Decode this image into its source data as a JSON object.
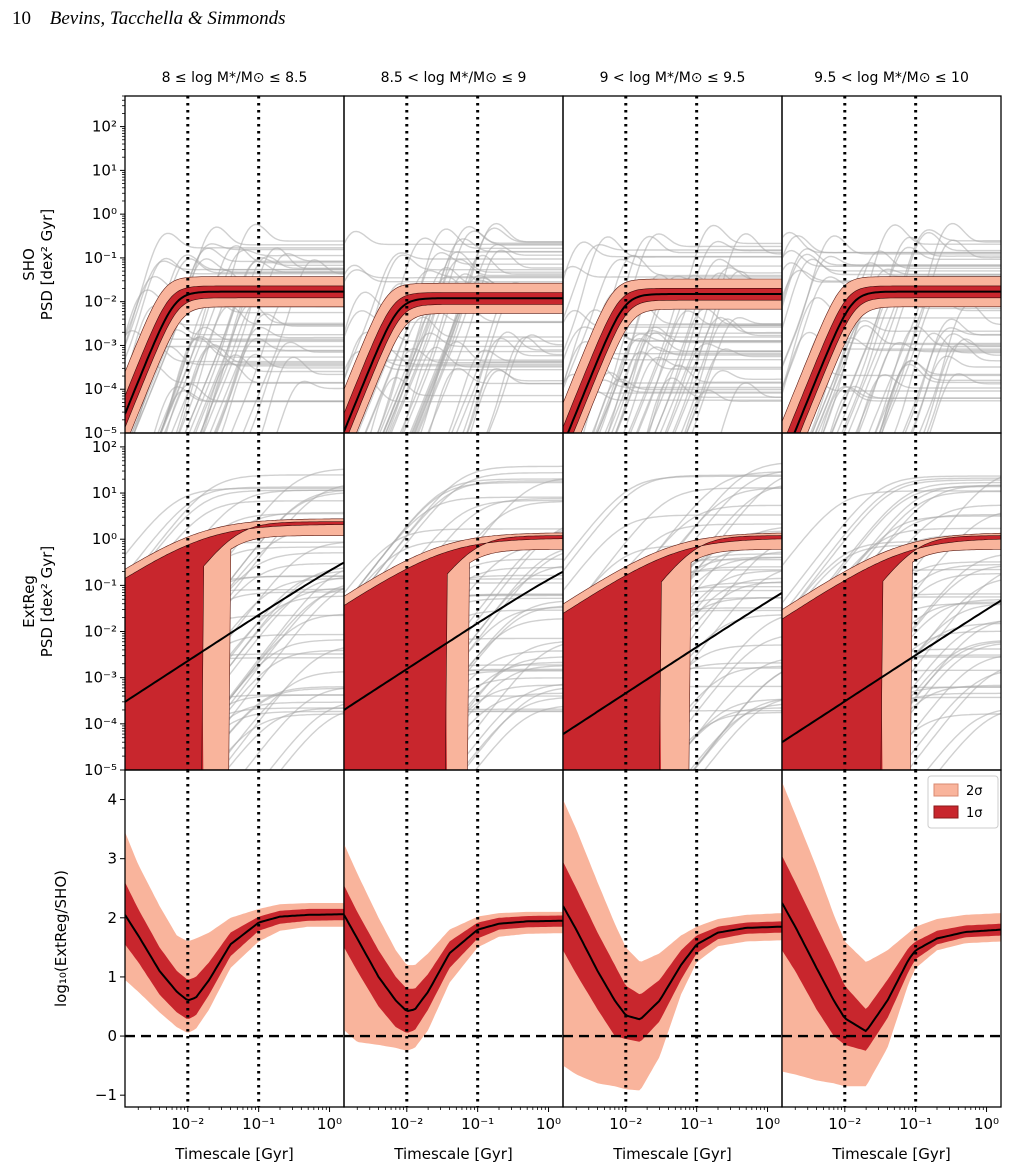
{
  "header": {
    "page_number": "10",
    "authors": "Bevins, Tacchella & Simmonds"
  },
  "chart_data": {
    "type": "line",
    "column_titles": [
      "8 ≤ log M*/M⊙ ≤ 8.5",
      "8.5 < log M*/M⊙ ≤ 9",
      "9 < log M*/M⊙ ≤ 9.5",
      "9.5 < log M*/M⊙ ≤ 10"
    ],
    "xlabel": "Timescale [Gyr]",
    "xscale": "log",
    "xlim": [
      0.0013,
      1.6
    ],
    "x_tick_labels": [
      "10⁻²",
      "10⁻¹",
      "10⁰"
    ],
    "vertical_lines": [
      0.01,
      0.1
    ],
    "rows": [
      {
        "ylabel": [
          "SHO",
          "PSD [dex² Gyr]"
        ],
        "yscale": "log",
        "ylim": [
          1e-05,
          500
        ],
        "y_tick_labels": [
          "10⁻⁵",
          "10⁻⁴",
          "10⁻³",
          "10⁻²",
          "10⁻¹",
          "10⁰",
          "10¹",
          "10²"
        ]
      },
      {
        "ylabel": [
          "ExtReg",
          "PSD [dex² Gyr]"
        ],
        "yscale": "log",
        "ylim": [
          1e-05,
          200
        ],
        "y_tick_labels": [
          "10⁻⁵",
          "10⁻⁴",
          "10⁻³",
          "10⁻²",
          "10⁻¹",
          "10⁰",
          "10¹",
          "10²"
        ]
      },
      {
        "ylabel": "log₁₀(ExtReg/SHO)",
        "yscale": "linear",
        "ylim": [
          -1.2,
          4.5
        ],
        "y_tick_labels": [
          "−1",
          "0",
          "1",
          "2",
          "3",
          "4"
        ],
        "horizontal_line": 0
      }
    ],
    "legend": {
      "placement": "top-right",
      "entries": [
        {
          "label": "2σ",
          "color": "#f9b49c"
        },
        {
          "label": "1σ",
          "color": "#c8262d"
        }
      ]
    },
    "colors": {
      "sample_lines": "#a9a9a9",
      "median": "#000000",
      "two_sigma": "#f9b49c",
      "one_sigma": "#c8262d"
    },
    "panels": {
      "sho": [
        {
          "plateau": 0.017,
          "onset_x": 0.0065
        },
        {
          "plateau": 0.012,
          "onset_x": 0.0075
        },
        {
          "plateau": 0.015,
          "onset_x": 0.0095
        },
        {
          "plateau": 0.017,
          "onset_x": 0.0125
        }
      ],
      "extreg": [
        {
          "plateau": 2.0,
          "low_end": 0.0003
        },
        {
          "plateau": 1.0,
          "low_end": 0.0002
        },
        {
          "plateau": 1.0,
          "low_end": 6e-05
        },
        {
          "plateau": 1.0,
          "low_end": 4e-05
        }
      ],
      "ratio": [
        {
          "x": [
            0.0013,
            0.002,
            0.004,
            0.007,
            0.01,
            0.013,
            0.02,
            0.04,
            0.1,
            0.2,
            0.5,
            1.6
          ],
          "median": [
            2.05,
            1.7,
            1.1,
            0.75,
            0.6,
            0.65,
            0.95,
            1.55,
            1.92,
            2.02,
            2.05,
            2.06
          ],
          "lo1": [
            1.55,
            1.25,
            0.7,
            0.4,
            0.28,
            0.35,
            0.7,
            1.35,
            1.78,
            1.9,
            1.95,
            1.96
          ],
          "hi1": [
            2.6,
            2.15,
            1.5,
            1.1,
            0.95,
            1.0,
            1.25,
            1.75,
            2.02,
            2.12,
            2.15,
            2.15
          ],
          "lo2": [
            0.95,
            0.75,
            0.4,
            0.15,
            0.05,
            0.12,
            0.45,
            1.15,
            1.6,
            1.78,
            1.85,
            1.85
          ],
          "hi2": [
            3.45,
            2.9,
            2.2,
            1.7,
            1.6,
            1.65,
            1.75,
            2.0,
            2.15,
            2.23,
            2.25,
            2.25
          ]
        },
        {
          "x": [
            0.0013,
            0.002,
            0.004,
            0.007,
            0.01,
            0.013,
            0.02,
            0.04,
            0.1,
            0.2,
            0.5,
            1.6
          ],
          "median": [
            2.05,
            1.65,
            1.0,
            0.6,
            0.42,
            0.45,
            0.75,
            1.4,
            1.8,
            1.9,
            1.94,
            1.95
          ],
          "lo1": [
            1.5,
            1.1,
            0.5,
            0.15,
            0.05,
            0.1,
            0.45,
            1.15,
            1.65,
            1.8,
            1.84,
            1.85
          ],
          "hi1": [
            2.55,
            2.1,
            1.45,
            1.0,
            0.8,
            0.8,
            1.05,
            1.6,
            1.92,
            2.0,
            2.03,
            2.04
          ],
          "lo2": [
            0.1,
            -0.1,
            -0.15,
            -0.2,
            -0.25,
            -0.2,
            0.1,
            0.9,
            1.5,
            1.68,
            1.73,
            1.74
          ],
          "hi2": [
            3.25,
            2.75,
            2.0,
            1.45,
            1.2,
            1.2,
            1.4,
            1.8,
            2.02,
            2.08,
            2.1,
            2.1
          ]
        },
        {
          "x": [
            0.0013,
            0.002,
            0.004,
            0.007,
            0.01,
            0.016,
            0.03,
            0.06,
            0.1,
            0.2,
            0.5,
            1.6
          ],
          "median": [
            2.2,
            1.8,
            1.1,
            0.6,
            0.35,
            0.28,
            0.6,
            1.2,
            1.55,
            1.75,
            1.83,
            1.85
          ],
          "lo1": [
            1.45,
            1.05,
            0.45,
            0.0,
            -0.05,
            -0.1,
            0.25,
            0.95,
            1.4,
            1.64,
            1.73,
            1.75
          ],
          "hi1": [
            2.95,
            2.5,
            1.75,
            1.2,
            0.85,
            0.7,
            0.95,
            1.45,
            1.7,
            1.85,
            1.92,
            1.94
          ],
          "lo2": [
            -0.5,
            -0.65,
            -0.8,
            -0.85,
            -0.9,
            -0.92,
            -0.35,
            0.7,
            1.25,
            1.52,
            1.6,
            1.62
          ],
          "hi2": [
            4.0,
            3.5,
            2.6,
            1.9,
            1.5,
            1.25,
            1.4,
            1.7,
            1.85,
            1.98,
            2.05,
            2.08
          ]
        },
        {
          "x": [
            0.0013,
            0.002,
            0.004,
            0.007,
            0.01,
            0.02,
            0.04,
            0.08,
            0.1,
            0.2,
            0.5,
            1.6
          ],
          "median": [
            2.25,
            1.85,
            1.15,
            0.6,
            0.3,
            0.08,
            0.6,
            1.3,
            1.45,
            1.65,
            1.76,
            1.8
          ],
          "lo1": [
            1.45,
            1.1,
            0.45,
            0.0,
            -0.15,
            -0.25,
            0.3,
            1.1,
            1.3,
            1.55,
            1.67,
            1.7
          ],
          "hi1": [
            3.05,
            2.6,
            1.85,
            1.25,
            0.85,
            0.45,
            0.95,
            1.5,
            1.6,
            1.78,
            1.87,
            1.9
          ],
          "lo2": [
            -0.6,
            -0.65,
            -0.75,
            -0.8,
            -0.85,
            -0.85,
            -0.2,
            0.9,
            1.15,
            1.45,
            1.57,
            1.6
          ],
          "hi2": [
            4.3,
            3.75,
            2.85,
            2.05,
            1.6,
            1.25,
            1.45,
            1.75,
            1.85,
            1.98,
            2.05,
            2.08
          ]
        }
      ]
    }
  }
}
